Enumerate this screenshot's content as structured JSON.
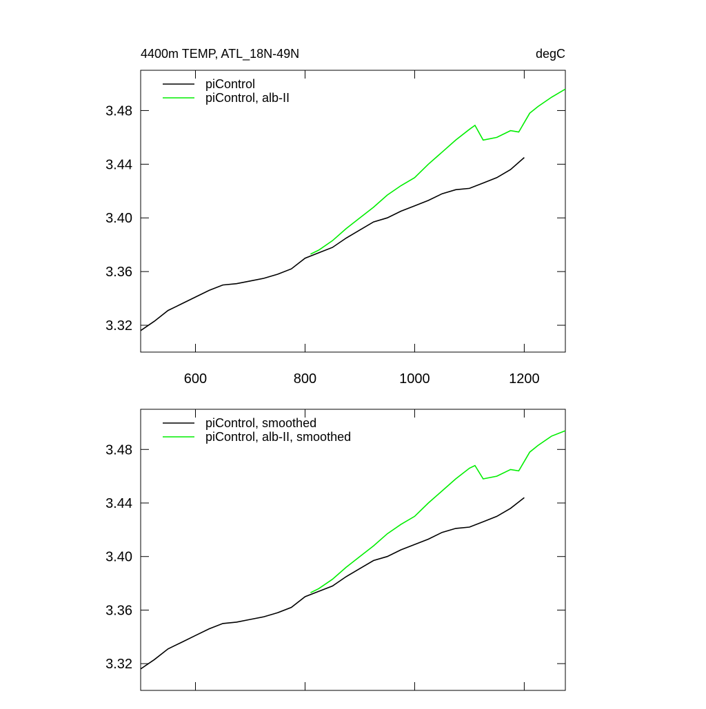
{
  "chart_data": [
    {
      "type": "line",
      "title": "4400m TEMP, ATL_18N-49N",
      "units": "degC",
      "xlim": [
        500,
        1275
      ],
      "ylim": [
        3.3,
        3.51
      ],
      "xticks": [
        600,
        800,
        1000,
        1200
      ],
      "x_tick_labels": true,
      "yticks": [
        {
          "value": 3.32,
          "label": "3.32"
        },
        {
          "value": 3.36,
          "label": "3.36"
        },
        {
          "value": 3.4,
          "label": "3.40"
        },
        {
          "value": 3.44,
          "label": "3.44"
        },
        {
          "value": 3.48,
          "label": "3.48"
        }
      ],
      "series": [
        {
          "name": "piControl",
          "color": "#000000",
          "x": [
            500,
            525,
            550,
            575,
            600,
            625,
            650,
            675,
            700,
            725,
            750,
            775,
            800,
            825,
            850,
            875,
            900,
            925,
            950,
            975,
            1000,
            1025,
            1050,
            1075,
            1100,
            1125,
            1150,
            1175,
            1200
          ],
          "values": [
            3.316,
            3.323,
            3.331,
            3.336,
            3.341,
            3.346,
            3.35,
            3.351,
            3.353,
            3.355,
            3.358,
            3.362,
            3.37,
            3.374,
            3.378,
            3.385,
            3.391,
            3.397,
            3.4,
            3.405,
            3.409,
            3.413,
            3.418,
            3.421,
            3.422,
            3.426,
            3.43,
            3.436,
            3.445
          ]
        },
        {
          "name": "piControl, alb-II",
          "color": "#00ee00",
          "x": [
            810,
            825,
            850,
            875,
            900,
            925,
            950,
            975,
            1000,
            1025,
            1050,
            1075,
            1100,
            1110,
            1125,
            1150,
            1175,
            1190,
            1210,
            1225,
            1250,
            1275
          ],
          "values": [
            3.373,
            3.376,
            3.383,
            3.392,
            3.4,
            3.408,
            3.417,
            3.424,
            3.43,
            3.44,
            3.449,
            3.458,
            3.466,
            3.469,
            3.458,
            3.46,
            3.465,
            3.464,
            3.478,
            3.483,
            3.49,
            3.496
          ]
        }
      ]
    },
    {
      "type": "line",
      "xlim": [
        500,
        1275
      ],
      "ylim": [
        3.3,
        3.51
      ],
      "xticks": [
        600,
        800,
        1000,
        1200
      ],
      "x_tick_labels": false,
      "yticks": [
        {
          "value": 3.32,
          "label": "3.32"
        },
        {
          "value": 3.36,
          "label": "3.36"
        },
        {
          "value": 3.4,
          "label": "3.40"
        },
        {
          "value": 3.44,
          "label": "3.44"
        },
        {
          "value": 3.48,
          "label": "3.48"
        }
      ],
      "series": [
        {
          "name": "piControl, smoothed",
          "color": "#000000",
          "x": [
            500,
            525,
            550,
            575,
            600,
            625,
            650,
            675,
            700,
            725,
            750,
            775,
            800,
            825,
            850,
            875,
            900,
            925,
            950,
            975,
            1000,
            1025,
            1050,
            1075,
            1100,
            1125,
            1150,
            1175,
            1200
          ],
          "values": [
            3.316,
            3.323,
            3.331,
            3.336,
            3.341,
            3.346,
            3.35,
            3.351,
            3.353,
            3.355,
            3.358,
            3.362,
            3.37,
            3.374,
            3.378,
            3.385,
            3.391,
            3.397,
            3.4,
            3.405,
            3.409,
            3.413,
            3.418,
            3.421,
            3.422,
            3.426,
            3.43,
            3.436,
            3.444
          ]
        },
        {
          "name": "piControl, alb-II, smoothed",
          "color": "#00ee00",
          "x": [
            810,
            825,
            850,
            875,
            900,
            925,
            950,
            975,
            1000,
            1025,
            1050,
            1075,
            1100,
            1110,
            1125,
            1150,
            1175,
            1190,
            1210,
            1225,
            1250,
            1275
          ],
          "values": [
            3.373,
            3.376,
            3.383,
            3.392,
            3.4,
            3.408,
            3.417,
            3.424,
            3.43,
            3.44,
            3.449,
            3.458,
            3.466,
            3.468,
            3.458,
            3.46,
            3.465,
            3.464,
            3.478,
            3.483,
            3.49,
            3.494
          ]
        }
      ]
    }
  ]
}
